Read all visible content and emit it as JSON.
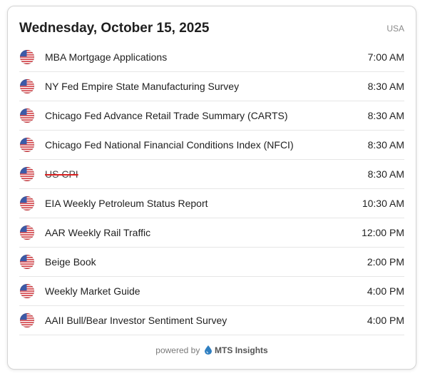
{
  "header": {
    "date": "Wednesday, October 15, 2025",
    "region": "USA"
  },
  "events": [
    {
      "name": "MBA Mortgage Applications",
      "time": "7:00 AM",
      "cancelled": false,
      "flag_icon": "us-flag-icon"
    },
    {
      "name": "NY Fed Empire State Manufacturing Survey",
      "time": "8:30 AM",
      "cancelled": false,
      "flag_icon": "us-flag-icon"
    },
    {
      "name": "Chicago Fed Advance Retail Trade Summary (CARTS)",
      "time": "8:30 AM",
      "cancelled": false,
      "flag_icon": "us-flag-icon"
    },
    {
      "name": "Chicago Fed National Financial Conditions Index (NFCI)",
      "time": "8:30 AM",
      "cancelled": false,
      "flag_icon": "us-flag-icon"
    },
    {
      "name": "US CPI",
      "time": "8:30 AM",
      "cancelled": true,
      "flag_icon": "us-flag-icon"
    },
    {
      "name": "EIA Weekly Petroleum Status Report",
      "time": "10:30 AM",
      "cancelled": false,
      "flag_icon": "us-flag-icon"
    },
    {
      "name": "AAR Weekly Rail Traffic",
      "time": "12:00 PM",
      "cancelled": false,
      "flag_icon": "us-flag-icon"
    },
    {
      "name": "Beige Book",
      "time": "2:00 PM",
      "cancelled": false,
      "flag_icon": "us-flag-icon"
    },
    {
      "name": "Weekly Market Guide",
      "time": "4:00 PM",
      "cancelled": false,
      "flag_icon": "us-flag-icon"
    },
    {
      "name": "AAII Bull/Bear Investor Sentiment Survey",
      "time": "4:00 PM",
      "cancelled": false,
      "flag_icon": "us-flag-icon"
    }
  ],
  "footer": {
    "powered_by": "powered by",
    "brand": "MTS Insights",
    "brand_icon": "droplet-logo-icon"
  },
  "colors": {
    "strike": "#d92020",
    "flag_red": "#d0343a",
    "flag_blue": "#3c5aa8",
    "brand_blue": "#2f7fc1"
  }
}
